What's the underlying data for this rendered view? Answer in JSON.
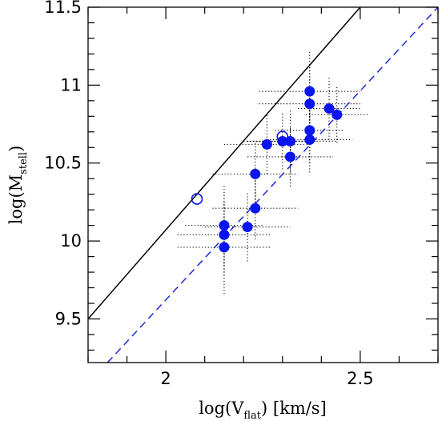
{
  "chart_data": {
    "type": "scatter",
    "xlabel": {
      "main": "log(V",
      "sub": "flat",
      "tail": ")  [km/s]"
    },
    "ylabel": {
      "main": "log(M",
      "sub": "stell",
      "tail": ")"
    },
    "xlim": [
      1.8,
      2.7
    ],
    "ylim": [
      9.22,
      11.5
    ],
    "xticks": {
      "major": [
        2.0,
        2.5
      ],
      "labels": [
        "2",
        "2.5"
      ],
      "minor_step": 0.1
    },
    "yticks": {
      "major": [
        9.5,
        10.0,
        10.5,
        11.0,
        11.5
      ],
      "labels": [
        "9.5",
        "10",
        "10.5",
        "11",
        "11.5"
      ],
      "minor_step": 0.1
    },
    "grid": false,
    "colors": {
      "filled_points": "#0a14ef",
      "open_points": "#0a14ef",
      "solid_line": "#000000",
      "dashed_line": "#1d2bd6",
      "error_bars": "#000000"
    },
    "lines": [
      {
        "style": "solid",
        "color": "#000000",
        "x": [
          1.8,
          2.5
        ],
        "y": [
          9.5,
          11.5
        ]
      },
      {
        "style": "dashed",
        "color": "#1d2bd6",
        "x": [
          1.85,
          2.7
        ],
        "y": [
          9.22,
          11.5
        ]
      }
    ],
    "series": [
      {
        "marker": "filled-circle",
        "points": [
          {
            "x": 2.15,
            "y": 10.1,
            "xerr": [
              0.1,
              0.1
            ],
            "yerr": [
              0.26,
              0.26
            ]
          },
          {
            "x": 2.15,
            "y": 10.04,
            "xerr": [
              0.12,
              0.12
            ],
            "yerr": [
              0.26,
              0.26
            ]
          },
          {
            "x": 2.15,
            "y": 9.96,
            "xerr": [
              0.12,
              0.12
            ],
            "yerr": [
              0.3,
              0.3
            ]
          },
          {
            "x": 2.21,
            "y": 10.09,
            "xerr": [
              0.11,
              0.11
            ],
            "yerr": [
              0.22,
              0.22
            ]
          },
          {
            "x": 2.23,
            "y": 10.21,
            "xerr": [
              0.11,
              0.11
            ],
            "yerr": [
              0.2,
              0.2
            ]
          },
          {
            "x": 2.23,
            "y": 10.43,
            "xerr": [
              0.11,
              0.11
            ],
            "yerr": [
              0.2,
              0.2
            ]
          },
          {
            "x": 2.26,
            "y": 10.62,
            "xerr": [
              0.11,
              0.11
            ],
            "yerr": [
              0.19,
              0.19
            ]
          },
          {
            "x": 2.3,
            "y": 10.64,
            "xerr": [
              0.09,
              0.09
            ],
            "yerr": [
              0.18,
              0.18
            ]
          },
          {
            "x": 2.32,
            "y": 10.64,
            "xerr": [
              0.12,
              0.12
            ],
            "yerr": [
              0.2,
              0.2
            ]
          },
          {
            "x": 2.32,
            "y": 10.54,
            "xerr": [
              0.11,
              0.11
            ],
            "yerr": [
              0.19,
              0.19
            ]
          },
          {
            "x": 2.37,
            "y": 10.96,
            "xerr": [
              0.13,
              0.13
            ],
            "yerr": [
              0.26,
              0.26
            ]
          },
          {
            "x": 2.37,
            "y": 10.88,
            "xerr": [
              0.13,
              0.13
            ],
            "yerr": [
              0.26,
              0.26
            ]
          },
          {
            "x": 2.37,
            "y": 10.71,
            "xerr": [
              0.09,
              0.09
            ],
            "yerr": [
              0.21,
              0.21
            ]
          },
          {
            "x": 2.37,
            "y": 10.65,
            "xerr": [
              0.11,
              0.11
            ],
            "yerr": [
              0.21,
              0.21
            ]
          },
          {
            "x": 2.42,
            "y": 10.85,
            "xerr": [
              0.08,
              0.08
            ],
            "yerr": [
              0.2,
              0.2
            ]
          },
          {
            "x": 2.44,
            "y": 10.81,
            "xerr": [
              0.08,
              0.08
            ],
            "yerr": [
              0.18,
              0.18
            ]
          }
        ]
      },
      {
        "marker": "open-circle",
        "points": [
          {
            "x": 2.08,
            "y": 10.27
          },
          {
            "x": 2.3,
            "y": 10.67
          }
        ]
      }
    ]
  }
}
